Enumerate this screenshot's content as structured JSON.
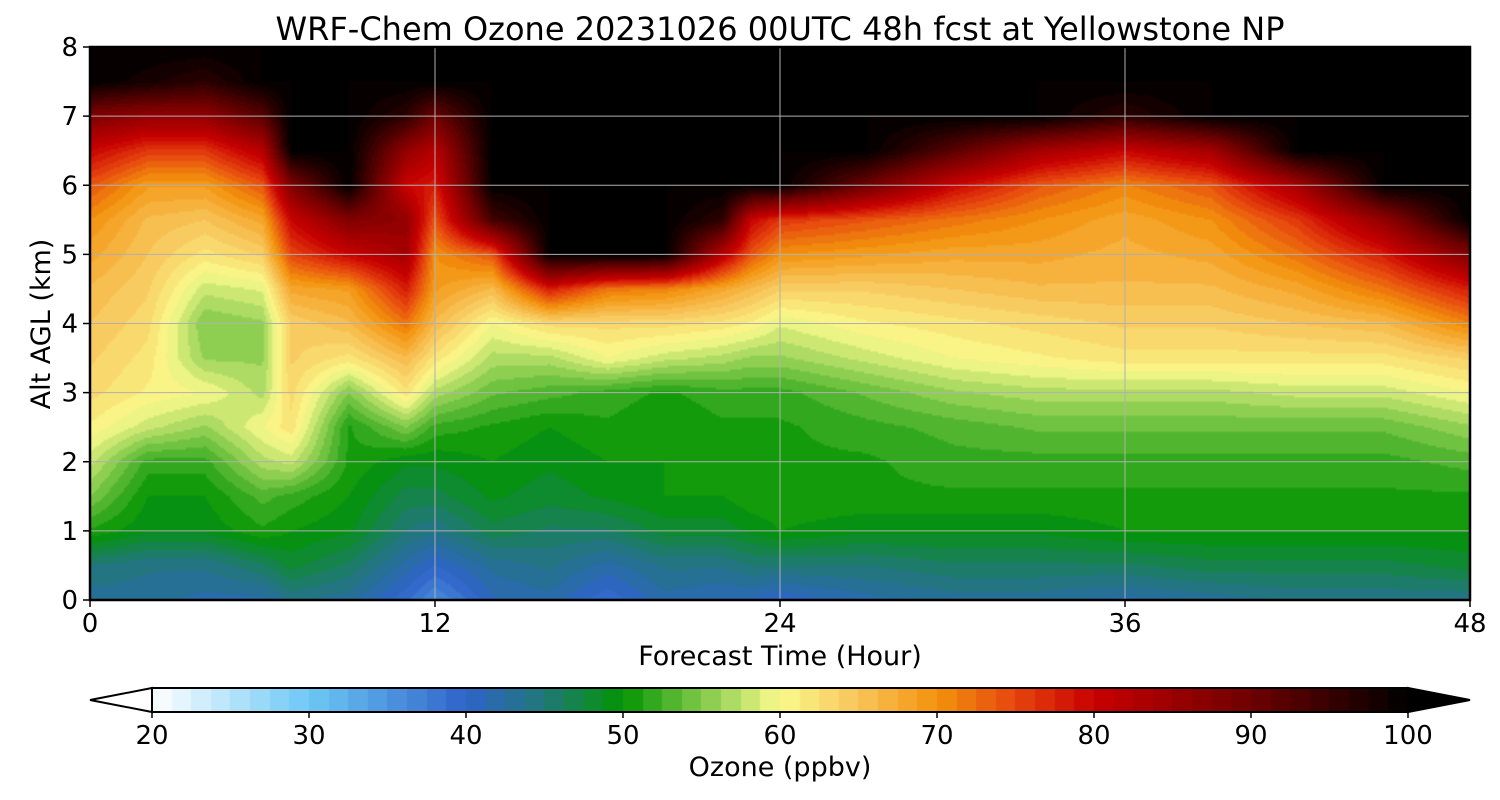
{
  "chart_data": {
    "type": "heatmap",
    "title": "WRF-Chem Ozone  20231026 00UTC 48h fcst at Yellowstone NP",
    "xlabel": "Forecast Time (Hour)",
    "ylabel": "Alt AGL (km)",
    "xlim": [
      0,
      48
    ],
    "ylim": [
      0,
      8
    ],
    "x_ticks": [
      "0",
      "12",
      "24",
      "36",
      "48"
    ],
    "x_tick_values": [
      0,
      12,
      24,
      36,
      48
    ],
    "y_ticks": [
      "0",
      "1",
      "2",
      "3",
      "4",
      "5",
      "6",
      "7",
      "8"
    ],
    "y_tick_values": [
      0,
      1,
      2,
      3,
      4,
      5,
      6,
      7,
      8
    ],
    "grid": true,
    "colorbar": {
      "label": "Ozone  (ppbv)",
      "range": [
        20,
        100
      ],
      "extend": "both",
      "ticks": [
        "20",
        "30",
        "40",
        "50",
        "60",
        "70",
        "80",
        "90",
        "100"
      ],
      "tick_values": [
        20,
        30,
        40,
        50,
        60,
        70,
        80,
        90,
        100
      ],
      "color_stops": [
        {
          "value": 20,
          "color": "#ffffff"
        },
        {
          "value": 30,
          "color": "#6ec8f5"
        },
        {
          "value": 40,
          "color": "#2f63c8"
        },
        {
          "value": 45,
          "color": "#217878"
        },
        {
          "value": 50,
          "color": "#039403"
        },
        {
          "value": 55,
          "color": "#7fc94a"
        },
        {
          "value": 60,
          "color": "#fafa8c"
        },
        {
          "value": 65,
          "color": "#f8c45a"
        },
        {
          "value": 70,
          "color": "#f3930d"
        },
        {
          "value": 75,
          "color": "#e6450f"
        },
        {
          "value": 80,
          "color": "#c80000"
        },
        {
          "value": 90,
          "color": "#6e0000"
        },
        {
          "value": 100,
          "color": "#000000"
        }
      ]
    },
    "times": [
      0,
      2,
      4,
      6,
      7,
      9,
      11,
      12,
      14,
      16,
      18,
      20,
      22,
      23,
      24,
      27,
      30,
      33,
      36,
      39,
      42,
      45,
      48
    ],
    "levels": [
      0,
      0.5,
      1,
      1.5,
      2,
      2.5,
      3,
      3.5,
      4,
      4.5,
      5,
      5.5,
      6,
      6.5,
      7,
      7.5,
      8
    ],
    "ozone": [
      [
        43,
        43,
        42,
        42,
        44,
        43,
        39,
        36,
        41,
        42,
        39,
        42,
        41,
        41,
        40,
        42,
        43,
        43,
        42,
        43,
        44,
        44,
        44
      ],
      [
        45,
        44,
        44,
        46,
        48,
        46,
        42,
        40,
        43,
        44,
        42,
        44,
        44,
        45,
        45,
        45,
        46,
        46,
        46,
        47,
        47,
        47,
        48
      ],
      [
        51,
        49,
        49,
        51,
        50,
        49,
        45,
        44,
        47,
        46,
        46,
        48,
        48,
        49,
        50,
        49,
        49,
        49,
        50,
        50,
        50,
        50,
        50
      ],
      [
        55,
        50,
        50,
        53,
        52,
        50,
        47,
        47,
        49,
        48,
        49,
        50,
        50,
        51,
        51,
        51,
        51,
        51,
        51,
        51,
        51,
        51,
        51
      ],
      [
        58,
        52,
        52,
        57,
        58,
        51,
        49,
        49,
        50,
        49,
        50,
        50,
        51,
        51,
        51,
        51,
        52,
        52,
        52,
        52,
        52,
        52,
        53
      ],
      [
        61,
        58,
        56,
        60,
        62,
        51,
        55,
        52,
        51,
        50,
        51,
        50,
        51,
        51,
        51,
        52,
        53,
        54,
        54,
        54,
        54,
        54,
        56
      ],
      [
        63,
        61,
        60,
        57,
        63,
        55,
        62,
        57,
        54,
        53,
        52,
        51,
        52,
        52,
        52,
        54,
        56,
        57,
        57,
        57,
        58,
        58,
        60
      ],
      [
        64,
        62,
        56,
        56,
        64,
        62,
        66,
        62,
        57,
        57,
        60,
        58,
        57,
        56,
        56,
        58,
        60,
        61,
        62,
        62,
        62,
        62,
        64
      ],
      [
        65,
        63,
        55,
        56,
        64,
        66,
        72,
        66,
        60,
        63,
        63,
        63,
        62,
        61,
        59,
        61,
        62,
        63,
        64,
        64,
        65,
        66,
        71
      ],
      [
        66,
        64,
        58,
        59,
        68,
        69,
        78,
        69,
        66,
        78,
        72,
        71,
        68,
        66,
        64,
        64,
        65,
        66,
        66,
        66,
        68,
        72,
        78
      ],
      [
        68,
        65,
        62,
        64,
        75,
        80,
        84,
        70,
        74,
        100,
        100,
        100,
        82,
        74,
        70,
        69,
        68,
        68,
        67,
        68,
        72,
        78,
        88
      ],
      [
        70,
        66,
        65,
        68,
        80,
        88,
        86,
        74,
        94,
        100,
        100,
        100,
        96,
        80,
        76,
        74,
        72,
        70,
        68,
        70,
        76,
        86,
        100
      ],
      [
        74,
        69,
        69,
        74,
        88,
        100,
        80,
        78,
        100,
        100,
        100,
        100,
        100,
        100,
        100,
        90,
        80,
        74,
        71,
        74,
        84,
        100,
        100
      ],
      [
        80,
        76,
        76,
        82,
        100,
        100,
        86,
        82,
        100,
        100,
        100,
        100,
        100,
        100,
        100,
        100,
        92,
        84,
        80,
        84,
        100,
        100,
        100
      ],
      [
        88,
        86,
        86,
        92,
        100,
        100,
        96,
        90,
        100,
        100,
        100,
        100,
        100,
        100,
        100,
        100,
        100,
        100,
        96,
        100,
        100,
        100,
        100
      ],
      [
        100,
        98,
        96,
        100,
        100,
        100,
        100,
        100,
        100,
        100,
        100,
        100,
        100,
        100,
        100,
        100,
        100,
        100,
        100,
        100,
        100,
        100,
        100
      ],
      [
        100,
        100,
        100,
        100,
        100,
        100,
        100,
        100,
        100,
        100,
        100,
        100,
        100,
        100,
        100,
        100,
        100,
        100,
        100,
        100,
        100,
        100,
        100
      ]
    ]
  }
}
